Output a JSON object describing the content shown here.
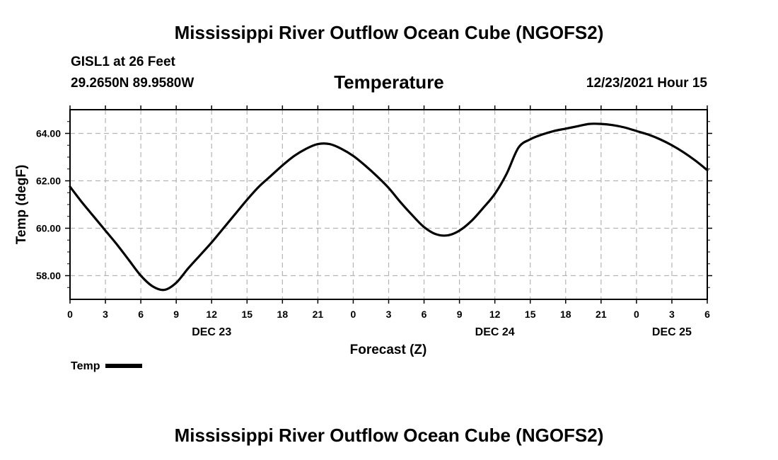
{
  "header": {
    "main_title": "Mississippi River Outflow Ocean Cube (NGOFS2)",
    "station": "GISL1 at 26 Feet",
    "coordinates": "29.2650N  89.9580W",
    "chart_title": "Temperature",
    "datetime": "12/23/2021 Hour 15"
  },
  "legend": {
    "label": "Temp"
  },
  "footer": {
    "title": "Mississippi River Outflow Ocean Cube (NGOFS2)"
  },
  "chart_data": {
    "type": "line",
    "title": "Temperature",
    "xlabel": "Forecast (Z)",
    "ylabel": "Temp (degF)",
    "xlim": [
      0,
      54
    ],
    "ylim": [
      57.0,
      65.0
    ],
    "y_ticks": [
      58.0,
      60.0,
      62.0,
      64.0
    ],
    "y_tick_labels": [
      "58.00",
      "60.00",
      "62.00",
      "64.00"
    ],
    "x_ticks": [
      0,
      3,
      6,
      9,
      12,
      15,
      18,
      21,
      24,
      27,
      30,
      33,
      36,
      39,
      42,
      45,
      48,
      51,
      54
    ],
    "x_tick_labels": [
      "0",
      "3",
      "6",
      "9",
      "12",
      "15",
      "18",
      "21",
      "0",
      "3",
      "6",
      "9",
      "12",
      "15",
      "18",
      "21",
      "0",
      "3",
      "6"
    ],
    "date_labels": [
      {
        "x": 12,
        "label": "DEC 23"
      },
      {
        "x": 36,
        "label": "DEC 24"
      },
      {
        "x": 51,
        "label": "DEC 25"
      }
    ],
    "grid": true,
    "legend_position": "bottom-left",
    "series": [
      {
        "name": "Temp",
        "color": "#000000",
        "x": [
          0,
          1,
          2,
          3,
          4,
          5,
          6,
          7,
          8,
          9,
          10,
          11,
          12,
          13,
          14,
          15,
          16,
          17,
          18,
          19,
          20,
          21,
          22,
          23,
          24,
          25,
          26,
          27,
          28,
          29,
          30,
          31,
          32,
          33,
          34,
          35,
          36,
          37,
          38,
          39,
          40,
          41,
          42,
          43,
          44,
          45,
          46,
          47,
          48,
          49,
          50,
          51,
          52,
          53,
          54
        ],
        "y": [
          61.75,
          61.1,
          60.5,
          59.9,
          59.3,
          58.65,
          58.0,
          57.55,
          57.4,
          57.7,
          58.3,
          58.85,
          59.4,
          60.0,
          60.6,
          61.2,
          61.75,
          62.2,
          62.65,
          63.05,
          63.35,
          63.55,
          63.55,
          63.35,
          63.05,
          62.65,
          62.2,
          61.7,
          61.1,
          60.55,
          60.05,
          59.75,
          59.7,
          59.9,
          60.3,
          60.85,
          61.45,
          62.3,
          63.4,
          63.75,
          63.95,
          64.1,
          64.2,
          64.3,
          64.4,
          64.4,
          64.35,
          64.25,
          64.1,
          63.95,
          63.75,
          63.5,
          63.2,
          62.85,
          62.45
        ]
      }
    ]
  }
}
